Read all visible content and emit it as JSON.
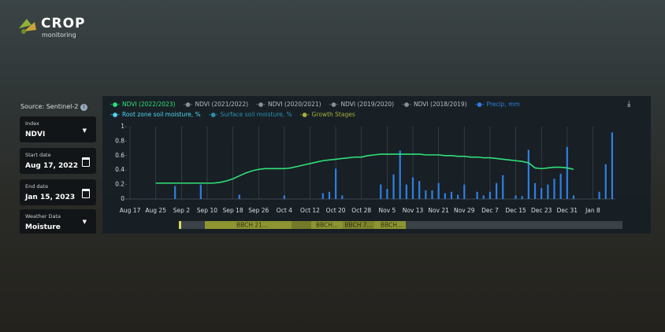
{
  "header": {
    "logo_title": "CROP",
    "logo_subtitle": "monitoring"
  },
  "sidebar": {
    "source": "Source: Sentinel-2",
    "fields": [
      {
        "label": "Index",
        "value": "NDVI"
      },
      {
        "label": "Start date",
        "value": "Aug 17, 2022"
      },
      {
        "label": "End date",
        "value": "Jan 15, 2023"
      },
      {
        "label": "Weather Data",
        "value": "Moisture"
      }
    ]
  },
  "chart_data": {
    "type": "combo",
    "categories": [
      "Aug 17",
      null,
      null,
      null,
      "Aug 25",
      null,
      null,
      null,
      "Sep 2",
      null,
      null,
      null,
      "Sep 10",
      null,
      null,
      null,
      "Sep 18",
      null,
      null,
      null,
      "Sep 26",
      null,
      null,
      null,
      "Oct 4",
      null,
      null,
      null,
      "Oct 12",
      null,
      null,
      null,
      "Oct 20",
      null,
      null,
      null,
      "Oct 28",
      null,
      null,
      null,
      "Nov 5",
      null,
      null,
      null,
      "Nov 13",
      null,
      null,
      null,
      "Nov 21",
      null,
      null,
      null,
      "Nov 29",
      null,
      null,
      null,
      "Dec 7",
      null,
      null,
      null,
      "Dec 15",
      null,
      null,
      null,
      "Dec 23",
      null,
      null,
      null,
      "Dec 31",
      null,
      null,
      null,
      "Jan 8",
      null,
      null,
      null
    ],
    "series": [
      {
        "name": "NDVI (2022/2023)",
        "type": "line",
        "color": "#2fe07a",
        "values": [
          null,
          null,
          null,
          null,
          0.22,
          0.22,
          0.22,
          0.22,
          0.22,
          0.22,
          0.22,
          0.22,
          0.22,
          0.22,
          0.23,
          0.25,
          0.28,
          0.32,
          0.36,
          0.39,
          0.41,
          0.42,
          0.42,
          0.42,
          0.42,
          0.43,
          0.45,
          0.47,
          0.49,
          0.51,
          0.53,
          0.54,
          0.55,
          0.56,
          0.57,
          0.58,
          0.58,
          0.6,
          0.61,
          0.62,
          0.62,
          0.62,
          0.62,
          0.62,
          0.62,
          0.62,
          0.61,
          0.61,
          0.61,
          0.6,
          0.6,
          0.59,
          0.59,
          0.58,
          0.58,
          0.57,
          0.57,
          0.56,
          0.55,
          0.54,
          0.53,
          0.52,
          0.5,
          0.43,
          0.42,
          0.43,
          0.44,
          0.44,
          0.43,
          0.41,
          null,
          null,
          null,
          null,
          null,
          null
        ]
      },
      {
        "name": "Precip, mm",
        "type": "bar",
        "color": "#2f7fe0",
        "values": [
          0,
          0,
          0,
          0,
          0,
          0,
          0,
          0.18,
          0,
          0,
          0,
          0.2,
          0,
          0,
          0,
          0,
          0,
          0.06,
          0,
          0,
          0,
          0,
          0,
          0,
          0.05,
          0,
          0,
          0,
          0,
          0,
          0.08,
          0.1,
          0.42,
          0.05,
          0,
          0,
          0,
          0,
          0,
          0.2,
          0.14,
          0.34,
          0.67,
          0.2,
          0.3,
          0.25,
          0.12,
          0.12,
          0.22,
          0.08,
          0.1,
          0.06,
          0.2,
          0,
          0.1,
          0.05,
          0.1,
          0.22,
          0.33,
          0,
          0.05,
          0.04,
          0.68,
          0.22,
          0.15,
          0.2,
          0.28,
          0.35,
          0.72,
          0.05,
          0,
          0,
          0,
          0.1,
          0.48,
          0.92
        ]
      }
    ],
    "inactive_series": [
      {
        "name": "NDVI (2021/2022)",
        "color": "#8a9096"
      },
      {
        "name": "NDVI (2020/2021)",
        "color": "#8a9096"
      },
      {
        "name": "NDVI (2019/2020)",
        "color": "#8a9096"
      },
      {
        "name": "NDVI (2018/2019)",
        "color": "#8a9096"
      },
      {
        "name": "Root zone soil moisture, %",
        "color": "#4fd6f0"
      },
      {
        "name": "Surface soil moisture, %",
        "color": "#2a8fb0"
      },
      {
        "name": "Growth Stages",
        "color": "#a6ad3a"
      }
    ],
    "ylim": [
      0,
      1
    ],
    "yticks": [
      0,
      0.2,
      0.4,
      0.6,
      0.8,
      1
    ],
    "grid": "x",
    "growth_stages": [
      "BBCH 21...",
      "BBCH...",
      "BBCH 7...",
      "BBCH..."
    ]
  }
}
